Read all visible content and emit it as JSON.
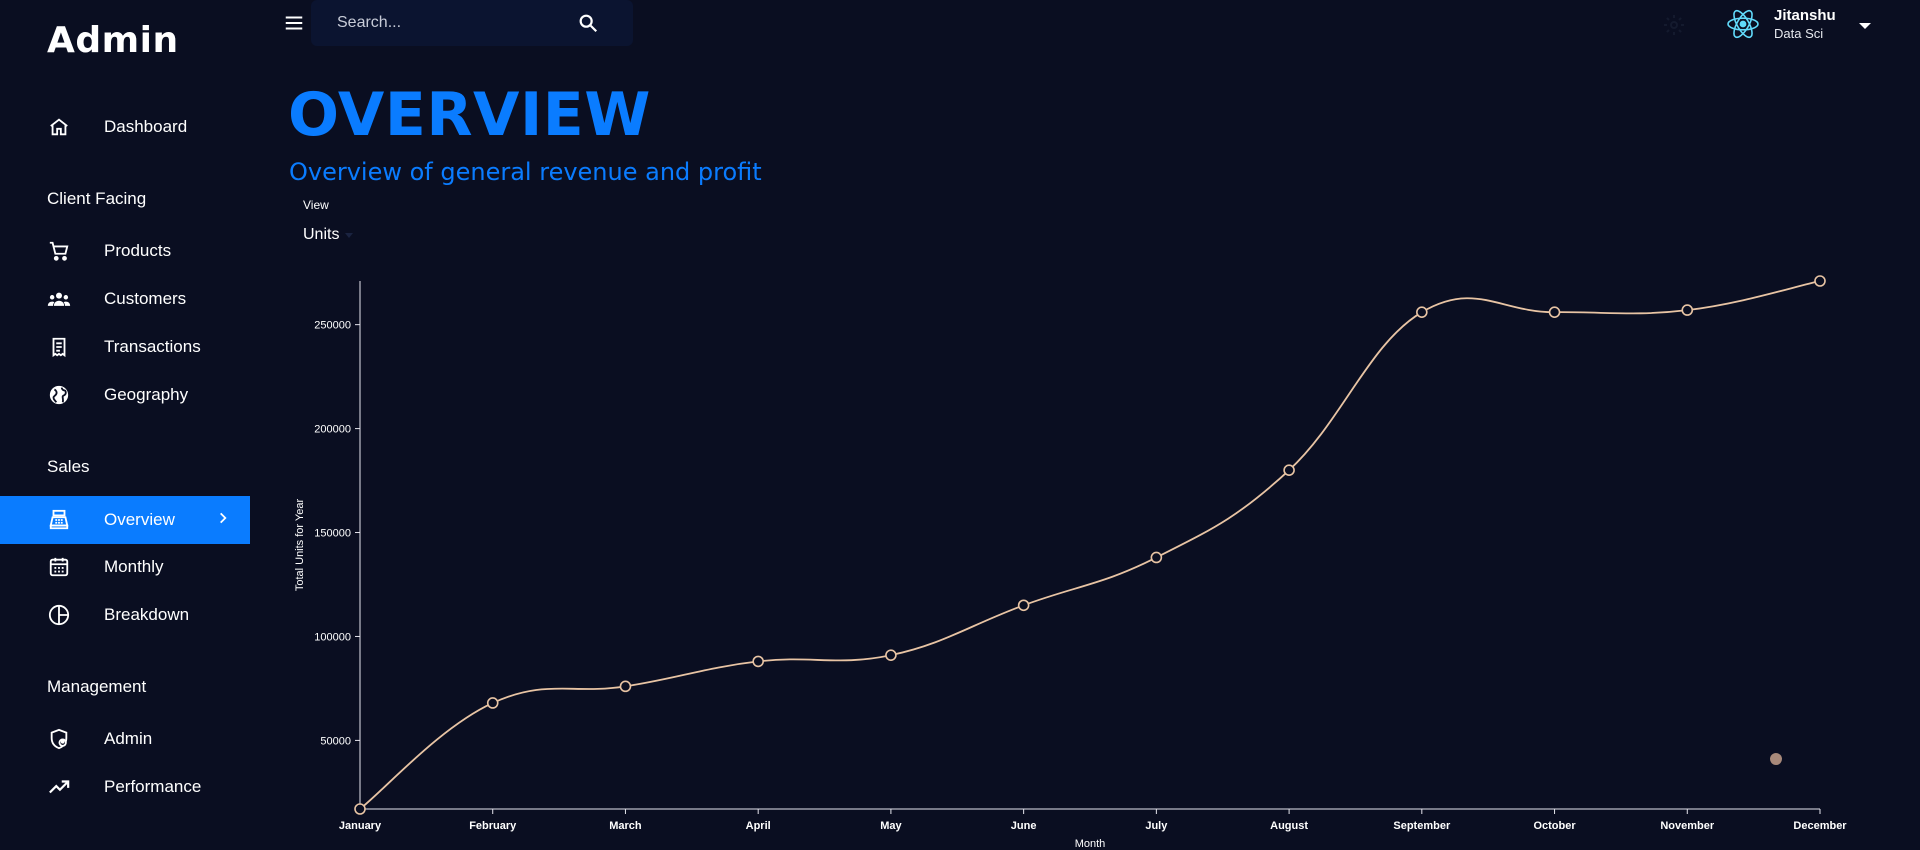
{
  "brand": "Admin",
  "nav": {
    "dashboard": "Dashboard",
    "section_client": "Client Facing",
    "products": "Products",
    "customers": "Customers",
    "transactions": "Transactions",
    "geography": "Geography",
    "section_sales": "Sales",
    "overview": "Overview",
    "monthly": "Monthly",
    "breakdown": "Breakdown",
    "section_management": "Management",
    "admin": "Admin",
    "performance": "Performance"
  },
  "topbar": {
    "search_placeholder": "Search...",
    "user_name": "Jitanshu",
    "user_role": "Data Sci"
  },
  "header": {
    "title": "OVERVIEW",
    "subtitle": "Overview of general revenue and profit"
  },
  "view": {
    "label": "View",
    "selected": "Units"
  },
  "colors": {
    "background": "#0a0e21",
    "accent": "#0a7cff",
    "line": "#e8c4a4"
  },
  "chart_data": {
    "type": "line",
    "categories": [
      "January",
      "February",
      "March",
      "April",
      "May",
      "June",
      "July",
      "August",
      "September",
      "October",
      "November",
      "December"
    ],
    "series": [
      {
        "name": "",
        "values": [
          17000,
          68000,
          76000,
          88000,
          91000,
          115000,
          138000,
          180000,
          256000,
          256000,
          257000,
          271000
        ]
      }
    ],
    "xlabel": "Month",
    "ylabel": "Total Units for Year",
    "yticks": [
      "50000",
      "100000",
      "150000",
      "200000",
      "250000"
    ],
    "ylim": [
      17000,
      271000
    ],
    "grid": false,
    "legend_position": "bottom-right"
  }
}
